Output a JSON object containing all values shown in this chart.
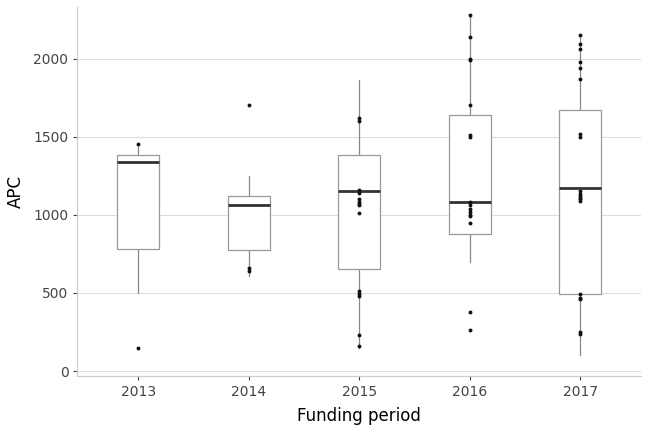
{
  "xlabel": "Funding period",
  "ylabel": "APC",
  "years": [
    "2013",
    "2014",
    "2015",
    "2016",
    "2017"
  ],
  "boxes": [
    {
      "q1": 780,
      "median": 1340,
      "q3": 1380,
      "whisker_low": 500,
      "whisker_high": 1450,
      "outliers": [
        150,
        1450
      ]
    },
    {
      "q1": 775,
      "median": 1060,
      "q3": 1120,
      "whisker_low": 610,
      "whisker_high": 1250,
      "outliers": [
        640,
        660,
        1700
      ]
    },
    {
      "q1": 655,
      "median": 1150,
      "q3": 1380,
      "whisker_low": 150,
      "whisker_high": 1860,
      "outliers": [
        480,
        490,
        510,
        230,
        160,
        1010,
        1060,
        1070,
        1080,
        1100,
        1140,
        1160,
        1600,
        1620
      ]
    },
    {
      "q1": 880,
      "median": 1080,
      "q3": 1640,
      "whisker_low": 700,
      "whisker_high": 2280,
      "outliers": [
        260,
        380,
        950,
        990,
        1000,
        1020,
        1040,
        1060,
        1080,
        1500,
        1510,
        1700,
        1990,
        2000,
        2140,
        2280
      ]
    },
    {
      "q1": 490,
      "median": 1170,
      "q3": 1670,
      "whisker_low": 100,
      "whisker_high": 2150,
      "outliers": [
        240,
        250,
        460,
        470,
        490,
        1090,
        1100,
        1110,
        1120,
        1130,
        1150,
        1500,
        1520,
        1870,
        1940,
        1980,
        2060,
        2090,
        2150
      ]
    }
  ],
  "box_color": "#ffffff",
  "box_edge_color": "#999999",
  "median_color": "#333333",
  "whisker_color": "#888888",
  "outlier_color": "#111111",
  "background_color": "#ffffff",
  "grid_color": "#dddddd",
  "ylim": [
    -30,
    2330
  ],
  "yticks": [
    0,
    500,
    1000,
    1500,
    2000
  ],
  "box_width": 0.38,
  "linewidth": 0.9,
  "median_linewidth": 2.0,
  "figsize": [
    6.48,
    4.32
  ],
  "dpi": 100
}
